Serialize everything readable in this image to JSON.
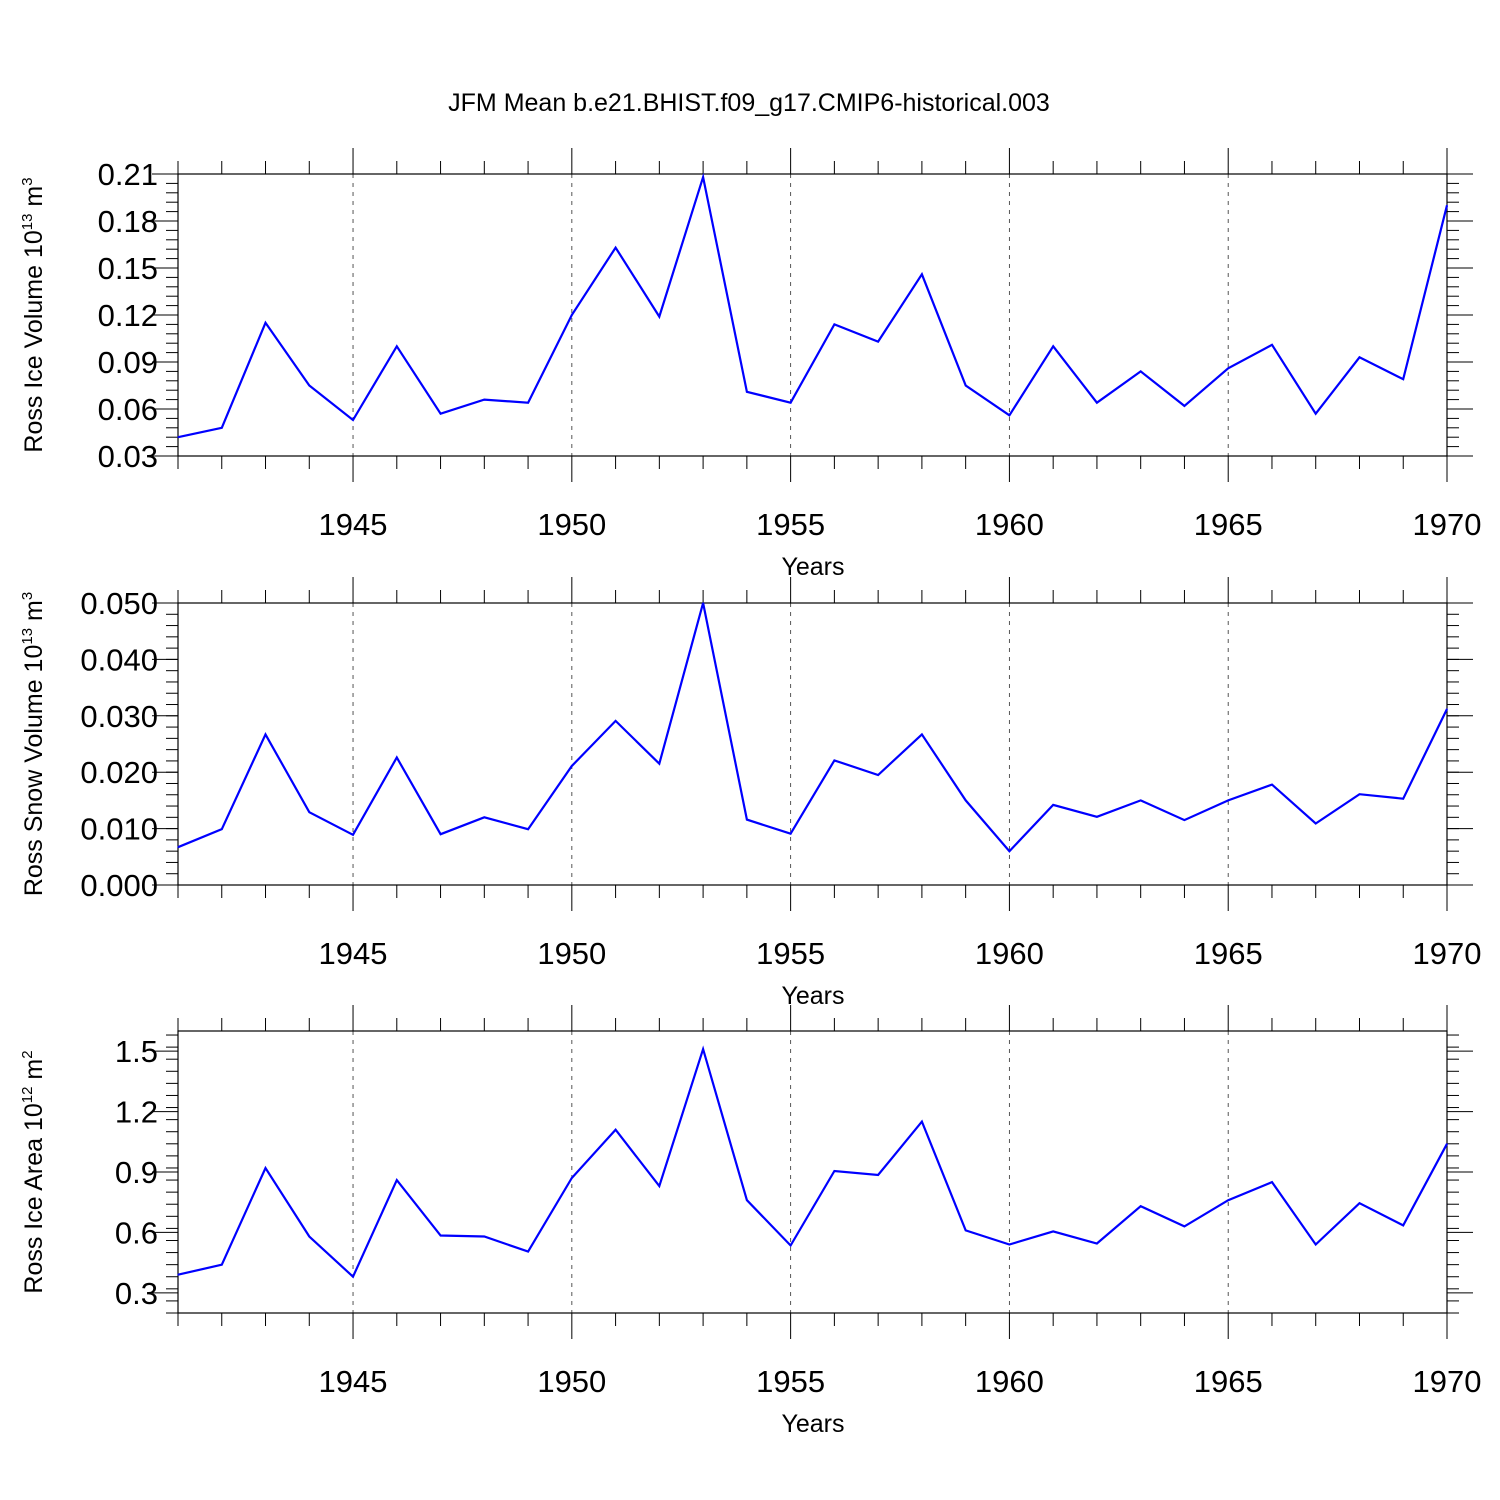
{
  "chart_data": [
    {
      "type": "line",
      "title": "JFM Mean b.e21.BHIST.f09_g17.CMIP6-historical.003",
      "xlabel": "Years",
      "ylabel": {
        "text": "Ross Ice Volume 10",
        "sup": "13",
        "unit": " m",
        "unit_sup": "3"
      },
      "xlim": [
        1941,
        1970
      ],
      "ylim": [
        0.03,
        0.21
      ],
      "yticks": [
        0.03,
        0.06,
        0.09,
        0.12,
        0.15,
        0.18,
        0.21
      ],
      "ytick_labels": [
        "0.03",
        "0.06",
        "0.09",
        "0.12",
        "0.15",
        "0.18",
        "0.21"
      ],
      "yminor_step": 0.006,
      "xticks": [
        1945,
        1950,
        1955,
        1960,
        1965,
        1970
      ],
      "xtick_labels": [
        "1945",
        "1950",
        "1955",
        "1960",
        "1965",
        "1970"
      ],
      "grid": "vertical-dashed",
      "color": "#0000ff",
      "series": [
        {
          "name": "Ross Ice Volume",
          "x": [
            1941,
            1942,
            1943,
            1944,
            1945,
            1946,
            1947,
            1948,
            1949,
            1950,
            1951,
            1952,
            1953,
            1954,
            1955,
            1956,
            1957,
            1958,
            1959,
            1960,
            1961,
            1962,
            1963,
            1964,
            1965,
            1966,
            1967,
            1968,
            1969,
            1970
          ],
          "values": [
            0.042,
            0.048,
            0.115,
            0.075,
            0.053,
            0.1,
            0.057,
            0.066,
            0.064,
            0.12,
            0.163,
            0.119,
            0.208,
            0.071,
            0.064,
            0.114,
            0.103,
            0.146,
            0.075,
            0.056,
            0.1,
            0.064,
            0.084,
            0.062,
            0.086,
            0.101,
            0.057,
            0.093,
            0.079,
            0.19
          ]
        }
      ]
    },
    {
      "type": "line",
      "title": "",
      "xlabel": "Years",
      "ylabel": {
        "text": "Ross Snow Volume 10",
        "sup": "13",
        "unit": " m",
        "unit_sup": "3"
      },
      "xlim": [
        1941,
        1970
      ],
      "ylim": [
        0.0,
        0.05
      ],
      "yticks": [
        0.0,
        0.01,
        0.02,
        0.03,
        0.04,
        0.05
      ],
      "ytick_labels": [
        "0.000",
        "0.010",
        "0.020",
        "0.030",
        "0.040",
        "0.050"
      ],
      "yminor_step": 0.002,
      "xticks": [
        1945,
        1950,
        1955,
        1960,
        1965,
        1970
      ],
      "xtick_labels": [
        "1945",
        "1950",
        "1955",
        "1960",
        "1965",
        "1970"
      ],
      "grid": "vertical-dashed",
      "color": "#0000ff",
      "series": [
        {
          "name": "Ross Snow Volume",
          "x": [
            1941,
            1942,
            1943,
            1944,
            1945,
            1946,
            1947,
            1948,
            1949,
            1950,
            1951,
            1952,
            1953,
            1954,
            1955,
            1956,
            1957,
            1958,
            1959,
            1960,
            1961,
            1962,
            1963,
            1964,
            1965,
            1966,
            1967,
            1968,
            1969,
            1970
          ],
          "values": [
            0.0067,
            0.0099,
            0.0267,
            0.0129,
            0.0089,
            0.0226,
            0.009,
            0.012,
            0.0099,
            0.0211,
            0.0291,
            0.0215,
            0.05,
            0.0116,
            0.0091,
            0.0221,
            0.0195,
            0.0267,
            0.015,
            0.006,
            0.0142,
            0.0121,
            0.015,
            0.0115,
            0.015,
            0.0178,
            0.0109,
            0.0161,
            0.0153,
            0.0312
          ]
        }
      ]
    },
    {
      "type": "line",
      "title": "",
      "xlabel": "Years",
      "ylabel": {
        "text": "Ross Ice Area 10",
        "sup": "12",
        "unit": " m",
        "unit_sup": "2"
      },
      "xlim": [
        1941,
        1970
      ],
      "ylim": [
        0.2,
        1.6
      ],
      "yticks": [
        0.3,
        0.6,
        0.9,
        1.2,
        1.5
      ],
      "ytick_labels": [
        "0.3",
        "0.6",
        "0.9",
        "1.2",
        "1.5"
      ],
      "yminor_step": 0.06,
      "xticks": [
        1945,
        1950,
        1955,
        1960,
        1965,
        1970
      ],
      "xtick_labels": [
        "1945",
        "1950",
        "1955",
        "1960",
        "1965",
        "1970"
      ],
      "grid": "vertical-dashed",
      "color": "#0000ff",
      "series": [
        {
          "name": "Ross Ice Area",
          "x": [
            1941,
            1942,
            1943,
            1944,
            1945,
            1946,
            1947,
            1948,
            1949,
            1950,
            1951,
            1952,
            1953,
            1954,
            1955,
            1956,
            1957,
            1958,
            1959,
            1960,
            1961,
            1962,
            1963,
            1964,
            1965,
            1966,
            1967,
            1968,
            1969,
            1970
          ],
          "values": [
            0.39,
            0.44,
            0.92,
            0.58,
            0.38,
            0.86,
            0.585,
            0.58,
            0.505,
            0.87,
            1.11,
            0.83,
            1.51,
            0.76,
            0.535,
            0.905,
            0.885,
            1.15,
            0.61,
            0.54,
            0.605,
            0.545,
            0.73,
            0.63,
            0.76,
            0.85,
            0.54,
            0.745,
            0.635,
            1.04
          ]
        }
      ]
    }
  ]
}
